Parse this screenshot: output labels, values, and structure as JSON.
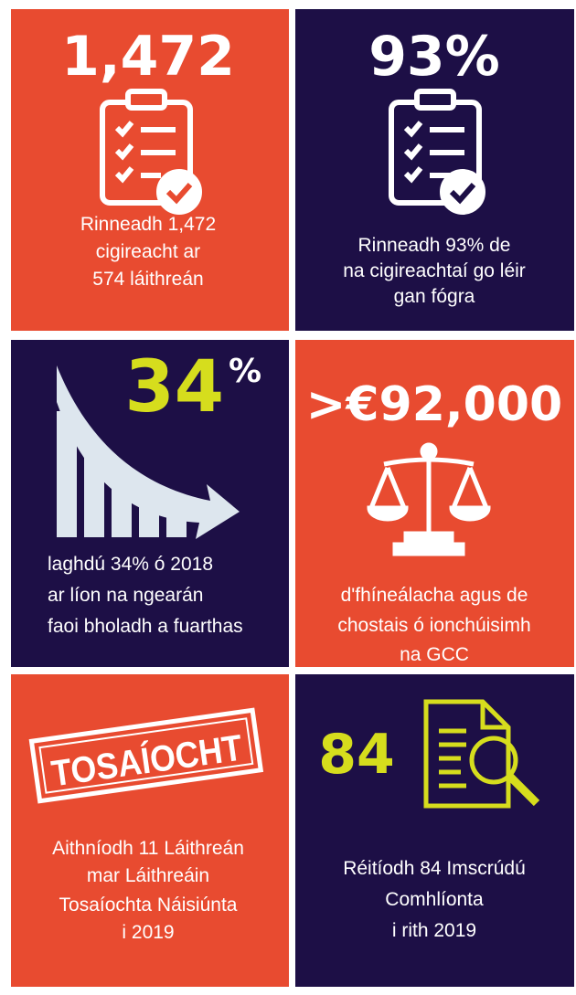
{
  "tiles": [
    {
      "headline": "1,472",
      "caption": [
        "Rinneadh 1,472",
        "cigireacht ar",
        "574 láithreán"
      ]
    },
    {
      "headline": "93%",
      "caption": [
        "Rinneadh 93% de",
        "na cigireachtaí go léir",
        "gan fógra"
      ]
    },
    {
      "headline": "34",
      "superscript": "%",
      "caption": [
        "laghdú 34% ó 2018",
        "ar líon na ngearán",
        "faoi bholadh a fuarthas"
      ]
    },
    {
      "headline": ">€92,000",
      "caption": [
        "d'fhíneálacha agus de",
        "chostais ó ionchúisimh",
        "na GCC"
      ]
    },
    {
      "stamp": "TOSAÍOCHT",
      "caption": [
        "Aithníodh 11 Láithreán",
        "mar Láithreáin",
        "Tosaíochta Náisiúnta",
        "i 2019"
      ]
    },
    {
      "headline": "84",
      "caption": [
        "Réitíodh 84 Imscrúdú",
        "Comhlíonta",
        "i rith 2019"
      ]
    }
  ]
}
